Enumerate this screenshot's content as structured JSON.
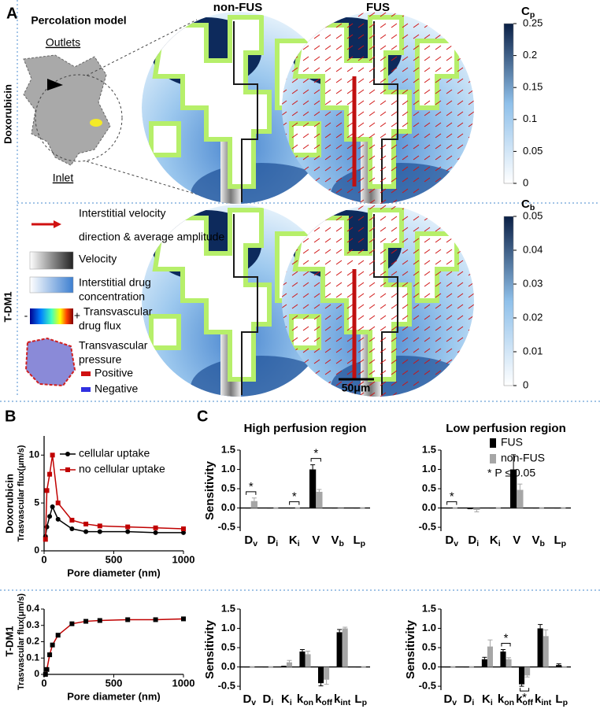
{
  "panel_a": {
    "label": "A",
    "model_title": "Percolation model",
    "outlets": "Outlets",
    "inlet": "Inlet",
    "rows": [
      "Doxorubicin",
      "T-DM1"
    ],
    "columns": [
      "non-FUS",
      "FUS"
    ],
    "colorbars": [
      {
        "label": "Cp",
        "lim": [
          0,
          0.25
        ],
        "ticks": [
          0,
          0.05,
          0.1,
          0.15,
          0.2,
          0.25
        ]
      },
      {
        "label": "Cb",
        "lim": [
          0,
          0.05
        ],
        "ticks": [
          0,
          0.01,
          0.02,
          0.03,
          0.04,
          0.05
        ]
      }
    ],
    "legend": {
      "velocity_arrow": [
        "Interstitial velocity",
        "direction & average amplitude"
      ],
      "velocity": "Velocity",
      "concentration": [
        "Interstitial drug",
        "concentration"
      ],
      "flux_minus": "-",
      "flux_plus": "+",
      "flux": [
        "Transvascular",
        "drug flux"
      ],
      "pressure": [
        "Transvascular",
        "pressure"
      ],
      "positive": "Positive",
      "negative": "Negative"
    },
    "scale_bar": "50μm"
  },
  "panel_b": {
    "label": "B",
    "rows": [
      "Doxorubicin",
      "T-DM1"
    ]
  },
  "panel_c": {
    "label": "C"
  },
  "chart_data": [
    {
      "type": "line",
      "x_label": "Pore diameter (nm)",
      "y_label": "Trasvascular flux(μm/s)",
      "x": [
        10,
        20,
        40,
        60,
        100,
        200,
        300,
        400,
        600,
        800,
        1000
      ],
      "series": [
        {
          "name": "cellular uptake",
          "color": "#000000",
          "marker": "circle",
          "values": [
            1.5,
            2.5,
            3.6,
            4.6,
            3.3,
            2.3,
            2.0,
            2.0,
            2.0,
            1.9,
            1.9
          ]
        },
        {
          "name": "no cellular uptake",
          "color": "#c00000",
          "marker": "square",
          "values": [
            1.2,
            6.3,
            8.0,
            10,
            5.0,
            3.2,
            2.8,
            2.6,
            2.5,
            2.4,
            2.3
          ]
        }
      ],
      "xlim": [
        0,
        1000
      ],
      "xticks": [
        0,
        500,
        1000
      ],
      "ylim": [
        0,
        12
      ],
      "yticks": [
        0,
        5,
        10
      ],
      "legend": "upper right"
    },
    {
      "type": "line",
      "x_label": "Pore diameter (nm)",
      "y_label": "Trasvascular flux(μm/s)",
      "x": [
        10,
        20,
        40,
        60,
        100,
        200,
        300,
        400,
        600,
        800,
        1000
      ],
      "series": [
        {
          "color": "#c00000",
          "marker_color": "#000000",
          "marker": "square",
          "values": [
            0.0,
            0.03,
            0.12,
            0.18,
            0.24,
            0.31,
            0.325,
            0.33,
            0.335,
            0.335,
            0.34
          ]
        }
      ],
      "xlim": [
        0,
        1000
      ],
      "xticks": [
        0,
        500,
        1000
      ],
      "ylim": [
        0,
        0.4
      ],
      "yticks": [
        0,
        0.1,
        0.2,
        0.3,
        0.4
      ]
    },
    {
      "type": "bar",
      "title": "High perfusion region",
      "y_label": "Sensitivity",
      "categories": [
        "Dv",
        "Di",
        "Ki",
        "V",
        "Vb",
        "Lp"
      ],
      "series": [
        {
          "name": "FUS",
          "color": "#000000",
          "values": [
            0,
            0,
            0,
            1.0,
            0,
            0
          ],
          "errors": [
            0,
            0,
            0,
            0.12,
            0,
            0
          ]
        },
        {
          "name": "non-FUS",
          "color": "#a6a6a6",
          "values": [
            0.18,
            0,
            0,
            0.42,
            -0.01,
            0
          ],
          "errors": [
            0.08,
            0,
            0,
            0.06,
            0,
            0
          ]
        }
      ],
      "significant": [
        true,
        false,
        true,
        true,
        false,
        false
      ],
      "significance_label": "*",
      "ylim": [
        -0.6,
        1.5
      ],
      "yticks": [
        -0.5,
        {
          "value": 0,
          "label": "0.0"
        },
        0.5,
        {
          "value": 1,
          "label": "1.0"
        },
        1.5
      ]
    },
    {
      "type": "bar",
      "title": "Low perfusion region",
      "categories": [
        "Dv",
        "Di",
        "Ki",
        "V",
        "Vb",
        "Lp"
      ],
      "series": [
        {
          "name": "FUS",
          "color": "#000000",
          "values": [
            0,
            -0.02,
            0,
            1.0,
            0,
            0
          ],
          "errors": [
            0,
            0,
            0,
            0.38,
            0,
            0
          ]
        },
        {
          "name": "non-FUS",
          "color": "#a6a6a6",
          "values": [
            0,
            -0.05,
            0,
            0.47,
            0,
            0
          ],
          "errors": [
            0,
            0.05,
            0,
            0.15,
            0,
            0
          ]
        }
      ],
      "significant": [
        true,
        false,
        false,
        false,
        false,
        false
      ],
      "significance_label": "*",
      "legend": "upper right",
      "note": "* P ≤ 0.05",
      "ylim": [
        -0.6,
        1.5
      ],
      "yticks": [
        -0.5,
        {
          "value": 0,
          "label": "0.0"
        },
        0.5,
        {
          "value": 1,
          "label": "1.0"
        },
        1.5
      ]
    },
    {
      "type": "bar",
      "y_label": "Sensitivity",
      "categories": [
        "Dv",
        "Di",
        "Ki",
        "kon",
        "koff",
        "kint",
        "Lp"
      ],
      "series": [
        {
          "name": "FUS",
          "color": "#000000",
          "values": [
            0,
            0,
            0.02,
            0.4,
            -0.42,
            0.9,
            0
          ],
          "errors": [
            0,
            0,
            0,
            0.05,
            0.07,
            0.07,
            0
          ]
        },
        {
          "name": "non-FUS",
          "color": "#a6a6a6",
          "values": [
            0,
            0,
            0.12,
            0.33,
            -0.33,
            1.0,
            0
          ],
          "errors": [
            0,
            0,
            0.05,
            0.08,
            0.12,
            0.03,
            0
          ]
        }
      ],
      "ylim": [
        -0.6,
        1.5
      ],
      "yticks": [
        -0.5,
        {
          "value": 0,
          "label": "0.0"
        },
        0.5,
        {
          "value": 1,
          "label": "1.0"
        },
        1.5
      ]
    },
    {
      "type": "bar",
      "y_label": "Sensitivity",
      "categories": [
        "Dv",
        "Di",
        "Ki",
        "kon",
        "koff",
        "kint",
        "Lp"
      ],
      "series": [
        {
          "name": "FUS",
          "color": "#000000",
          "values": [
            0,
            0,
            0.2,
            0.4,
            -0.45,
            1.0,
            0.05
          ],
          "errors": [
            0,
            0,
            0.05,
            0.05,
            0.05,
            0.1,
            0.03
          ]
        },
        {
          "name": "non-FUS",
          "color": "#a6a6a6",
          "values": [
            0,
            0,
            0.53,
            0.2,
            -0.22,
            0.8,
            0
          ],
          "errors": [
            0,
            0,
            0.17,
            0.04,
            0.04,
            0.16,
            0
          ]
        }
      ],
      "significant": [
        false,
        false,
        false,
        true,
        true,
        false,
        false
      ],
      "significance_label": "*",
      "ylim": [
        -0.6,
        1.5
      ],
      "yticks": [
        -0.5,
        {
          "value": 0,
          "label": "0.0"
        },
        0.5,
        {
          "value": 1,
          "label": "1.0"
        },
        1.5
      ]
    }
  ]
}
